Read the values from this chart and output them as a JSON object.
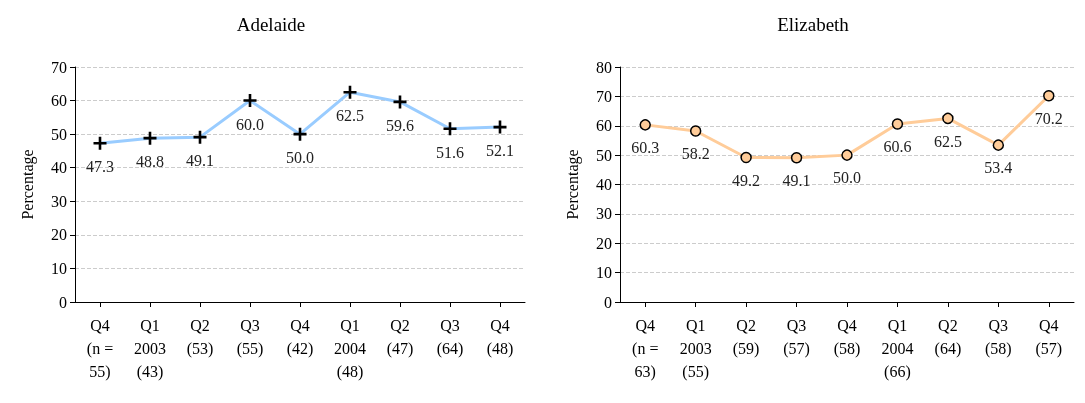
{
  "chart_data": [
    {
      "type": "line",
      "title": "Adelaide",
      "ylabel": "Percentage",
      "categories": [
        "Q4\n(n =\n55)",
        "Q1\n2003\n(43)",
        "Q2\n(53)",
        "Q3\n(55)",
        "Q4\n(42)",
        "Q1\n2004\n(48)",
        "Q2\n(47)",
        "Q3\n(64)",
        "Q4\n(48)"
      ],
      "series": [
        {
          "color": "#99ccff",
          "values": [
            47.3,
            48.8,
            49.1,
            60.0,
            50.0,
            62.5,
            59.6,
            51.6,
            52.1
          ],
          "value_labels": [
            "47.3",
            "48.8",
            "49.1",
            "60.0",
            "50.0",
            "62.5",
            "59.6",
            "51.6",
            "52.1"
          ]
        }
      ],
      "ylim": [
        0,
        70
      ],
      "yticks": [
        0,
        10,
        20,
        30,
        40,
        50,
        60,
        70
      ],
      "grid": "y",
      "marker": "cross"
    },
    {
      "type": "line",
      "title": "Elizabeth",
      "ylabel": "Percentage",
      "categories": [
        "Q4\n(n =\n63)",
        "Q1\n2003\n(55)",
        "Q2\n(59)",
        "Q3\n(57)",
        "Q4\n(58)",
        "Q1\n2004\n(66)",
        "Q2\n(64)",
        "Q3\n(58)",
        "Q4\n(57)"
      ],
      "series": [
        {
          "color": "#ffcc99",
          "values": [
            60.3,
            58.2,
            49.2,
            49.1,
            50.0,
            60.6,
            62.5,
            53.4,
            70.2
          ],
          "value_labels": [
            "60.3",
            "58.2",
            "49.2",
            "49.1",
            "50.0",
            "60.6",
            "62.5",
            "53.4",
            "70.2"
          ]
        }
      ],
      "ylim": [
        0,
        80
      ],
      "yticks": [
        0,
        10,
        20,
        30,
        40,
        50,
        60,
        70,
        80
      ],
      "grid": "y",
      "marker": "circle"
    }
  ]
}
